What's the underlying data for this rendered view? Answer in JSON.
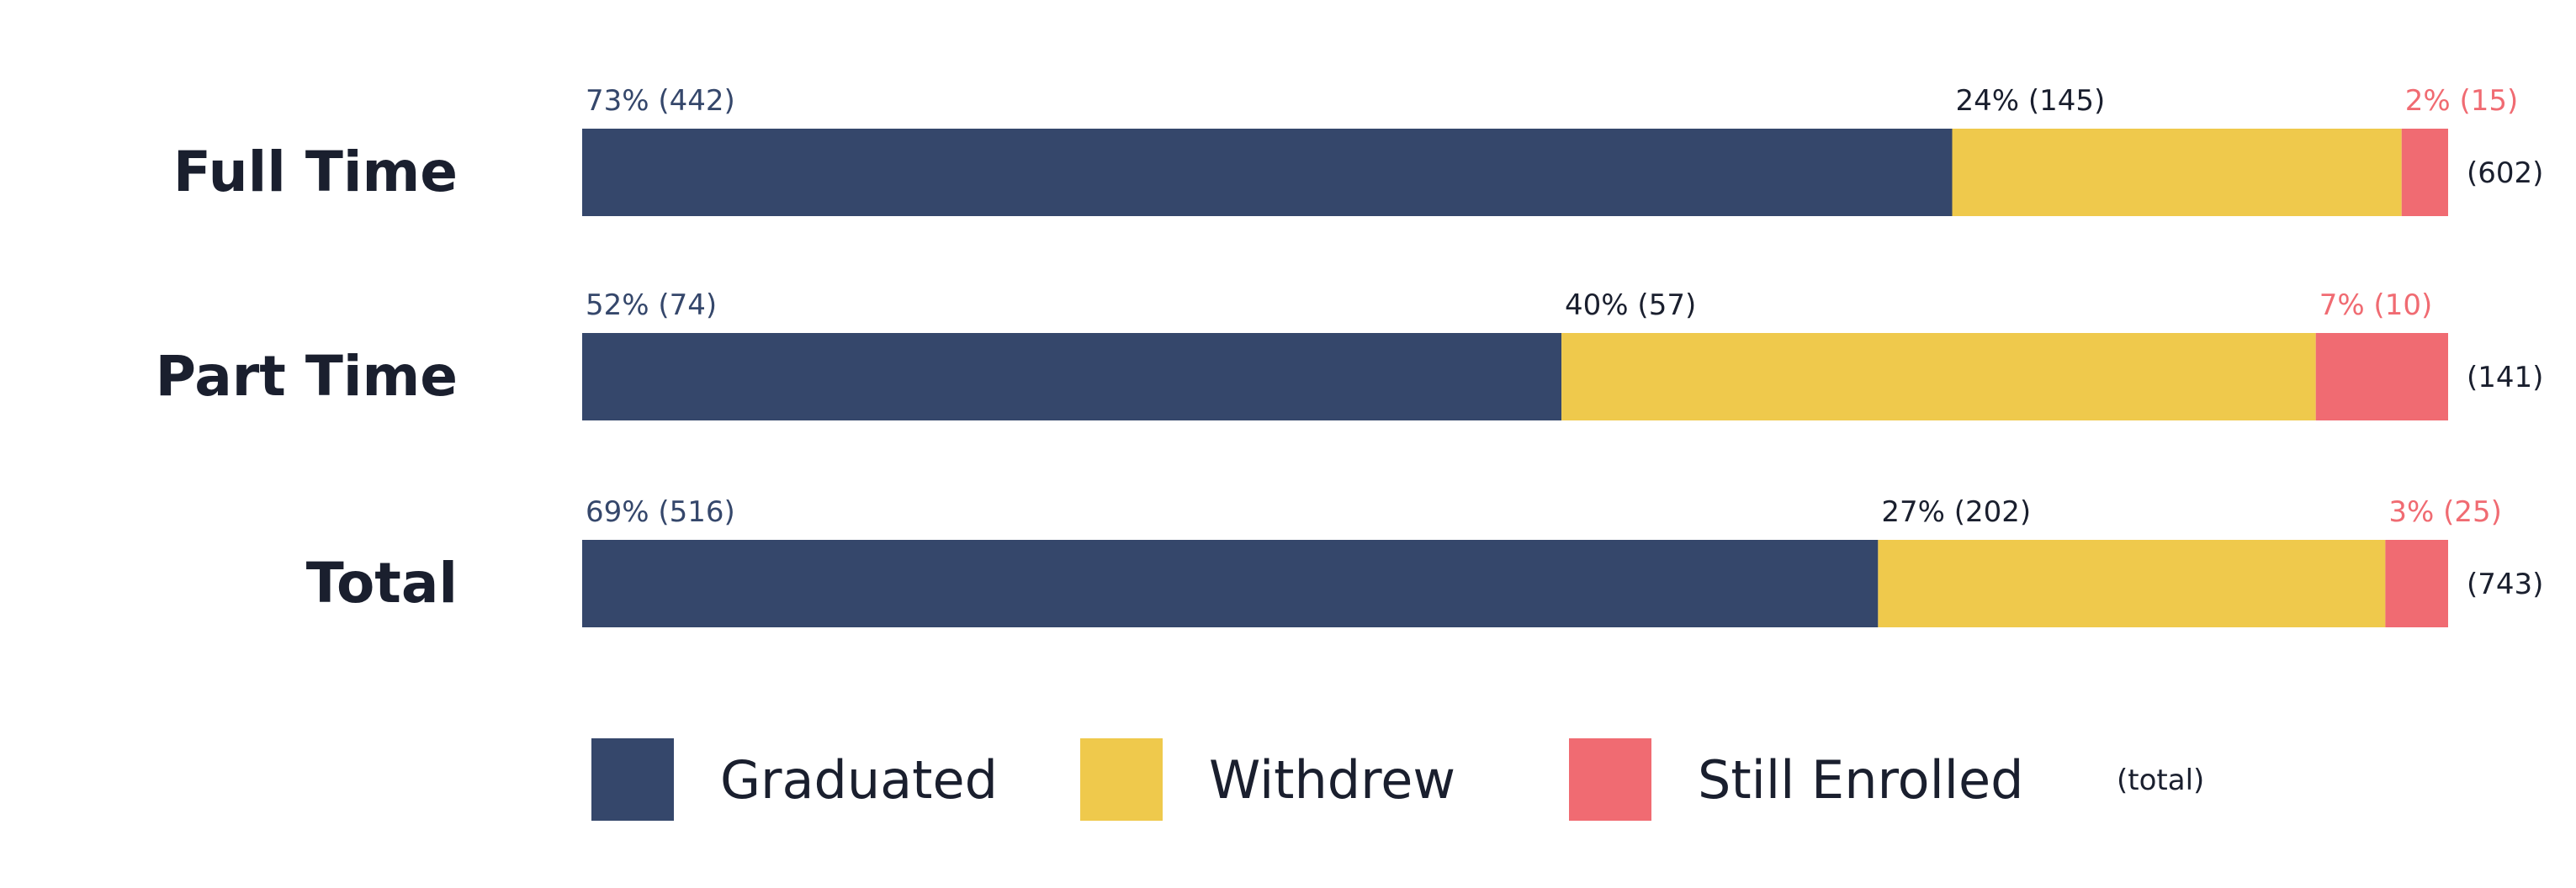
{
  "chart_data": {
    "type": "bar",
    "orientation": "horizontal",
    "stacked": true,
    "normalized": true,
    "categories": [
      "Full Time",
      "Part Time",
      "Total"
    ],
    "series": [
      {
        "name": "Graduated",
        "color": "#35476b",
        "values": [
          442,
          74,
          516
        ],
        "labels": [
          "73% (442)",
          "52% (74)",
          "69% (516)"
        ],
        "label_color": "#35476b"
      },
      {
        "name": "Withdrew",
        "color": "#efc94c",
        "values": [
          145,
          57,
          202
        ],
        "labels": [
          "24% (145)",
          "40% (57)",
          "27% (202)"
        ],
        "label_color": "#1a1f2e"
      },
      {
        "name": "Still Enrolled",
        "color": "#f06b72",
        "values": [
          15,
          10,
          25
        ],
        "labels": [
          "2% (15)",
          "7% (10)",
          "3% (25)"
        ],
        "label_color": "#f06b72"
      }
    ],
    "totals": [
      602,
      141,
      743
    ],
    "total_labels": [
      "(602)",
      "(141)",
      "(743)"
    ],
    "legend": {
      "position": "bottom",
      "items": [
        "Graduated",
        "Withdrew",
        "Still Enrolled"
      ],
      "extra": "(total)"
    },
    "grid": false
  }
}
